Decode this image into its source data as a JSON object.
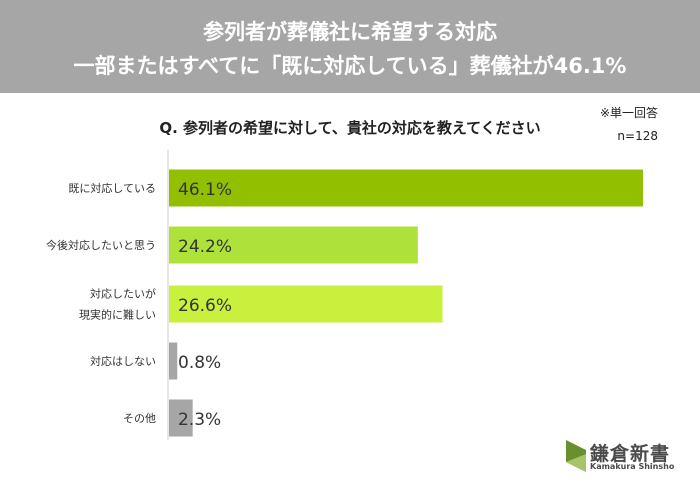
{
  "header": {
    "line1": "参列者が葬儀社に希望する対応",
    "line2": "一部またはすべてに「既に対応している」葬儀社が46.1%"
  },
  "notes": {
    "answer_type": "※単一回答",
    "sample": "n=128"
  },
  "question": "Q.  参列者の希望に対して、貴社の対応を教えてください",
  "logo": {
    "name": "鎌倉新書",
    "sub": "Kamakura Shinsho"
  },
  "chart_data": {
    "type": "bar",
    "orientation": "horizontal",
    "categories": [
      [
        "既に対応している"
      ],
      [
        "今後対応したいと思う"
      ],
      [
        "対応したいが",
        "現実的に難しい"
      ],
      [
        "対応はしない"
      ],
      [
        "その他"
      ]
    ],
    "values": [
      46.1,
      24.2,
      26.6,
      0.8,
      2.3
    ],
    "labels": [
      "46.1%",
      "24.2%",
      "26.6%",
      "0.8%",
      "2.3%"
    ],
    "colors": [
      "#92c000",
      "#aee23a",
      "#c8f03c",
      "#a6a6a6",
      "#a6a6a6"
    ],
    "xlim": [
      0,
      50
    ],
    "grid": false
  }
}
